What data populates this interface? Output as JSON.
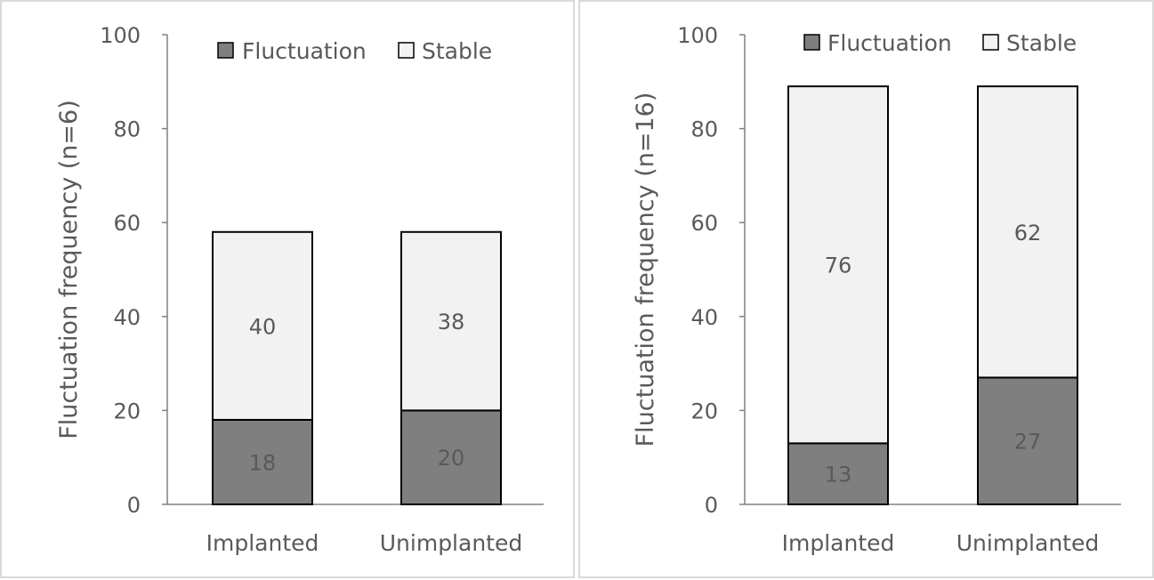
{
  "chart_data": [
    {
      "type": "bar",
      "stacked": true,
      "categories": [
        "Implanted",
        "Unimplanted"
      ],
      "series": [
        {
          "name": "Fluctuation",
          "values": [
            18,
            20
          ],
          "color": "#7f7f7f",
          "labels": [
            "18",
            "20"
          ]
        },
        {
          "name": "Stable",
          "values": [
            40,
            38
          ],
          "color": "#f2f2f2",
          "labels": [
            "40",
            "38"
          ]
        }
      ],
      "ylabel": "Fluctuation frequency (n=6)",
      "ylim": [
        0,
        100
      ],
      "yticks": [
        "0",
        "20",
        "40",
        "60",
        "80",
        "100"
      ],
      "legend_position": "top",
      "grid": false
    },
    {
      "type": "bar",
      "stacked": true,
      "categories": [
        "Implanted",
        "Unimplanted"
      ],
      "series": [
        {
          "name": "Fluctuation",
          "values": [
            13,
            27
          ],
          "color": "#7f7f7f",
          "labels": [
            "13",
            "27"
          ]
        },
        {
          "name": "Stable",
          "values": [
            76,
            62
          ],
          "color": "#f2f2f2",
          "labels": [
            "76",
            "62"
          ]
        }
      ],
      "ylabel": "Fluctuation frequency (n=16)",
      "ylim": [
        0,
        100
      ],
      "yticks": [
        "0",
        "20",
        "40",
        "60",
        "80",
        "100"
      ],
      "legend_position": "top",
      "grid": false
    }
  ]
}
